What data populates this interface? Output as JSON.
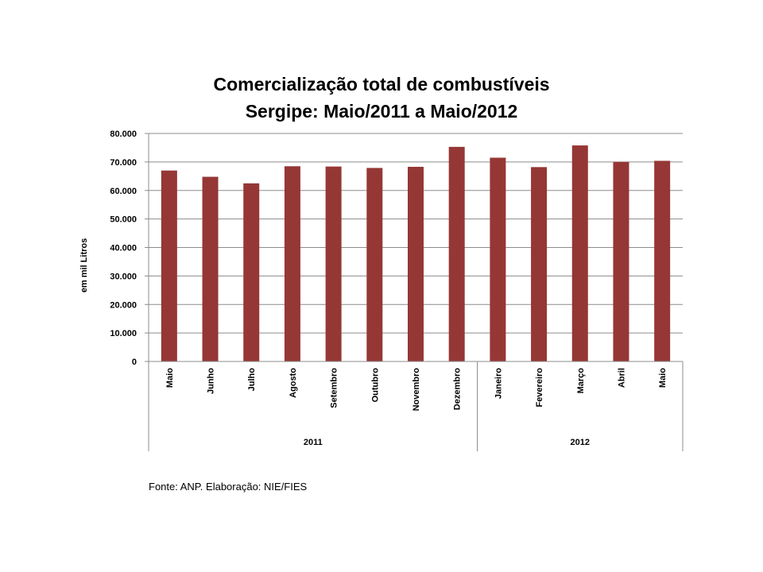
{
  "chart_data": {
    "type": "bar",
    "title_line1": "Comercialização total de combustíveis",
    "title_line2": "Sergipe: Maio/2011 a Maio/2012",
    "ylabel": "em mil Litros",
    "xlabel": "",
    "ylim": [
      0,
      80000
    ],
    "yticks": [
      "0",
      "10.000",
      "20.000",
      "30.000",
      "40.000",
      "50.000",
      "60.000",
      "70.000",
      "80.000"
    ],
    "grid": true,
    "legend": "none",
    "bar_color": "#953735",
    "groups": [
      {
        "label": "2011",
        "count": 8
      },
      {
        "label": "2012",
        "count": 5
      }
    ],
    "categories": [
      "Maio",
      "Junho",
      "Julho",
      "Agosto",
      "Setembro",
      "Outubro",
      "Novembro",
      "Dezembro",
      "Janeiro",
      "Fevereiro",
      "Março",
      "Abril",
      "Maio"
    ],
    "values": [
      67000,
      64800,
      62500,
      68500,
      68400,
      67900,
      68300,
      75300,
      71500,
      68200,
      75800,
      70000,
      70400
    ]
  },
  "source_text": "Fonte: ANP. Elaboração:  NIE/FIES"
}
